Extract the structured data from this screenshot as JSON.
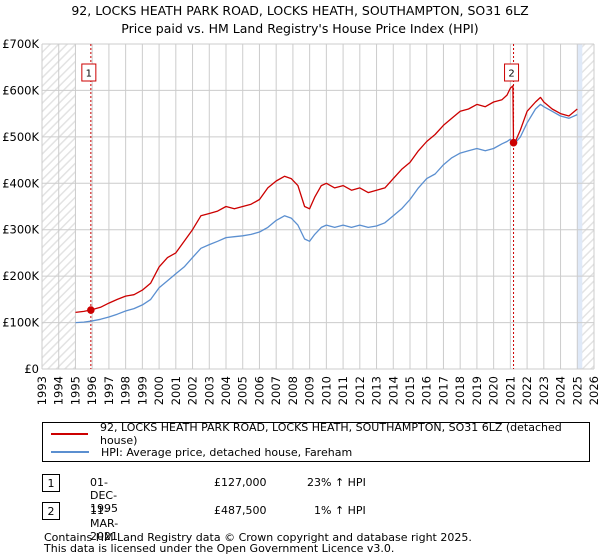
{
  "title": {
    "line1": "92, LOCKS HEATH PARK ROAD, LOCKS HEATH, SOUTHAMPTON, SO31 6LZ",
    "line2": "Price paid vs. HM Land Registry's House Price Index (HPI)"
  },
  "colors": {
    "property": "#cc0000",
    "hpi": "#5b8fd0",
    "grid": "#cccccc",
    "hatch": "#e6e6e6",
    "shade": "#dfe9f8"
  },
  "legend": {
    "property": "92, LOCKS HEATH PARK ROAD, LOCKS HEATH, SOUTHAMPTON, SO31 6LZ (detached house)",
    "hpi": "HPI: Average price, detached house, Fareham"
  },
  "transactions": [
    {
      "num": "1",
      "date": "01-DEC-1995",
      "price": "£127,000",
      "hpi": "23% ↑ HPI"
    },
    {
      "num": "2",
      "date": "11-MAR-2021",
      "price": "£487,500",
      "hpi": "  1% ↑ HPI"
    }
  ],
  "footer": {
    "line1": "Contains HM Land Registry data © Crown copyright and database right 2025.",
    "line2": "This data is licensed under the Open Government Licence v3.0."
  },
  "chart_data": {
    "type": "line",
    "title": "92, LOCKS HEATH PARK ROAD, LOCKS HEATH, SOUTHAMPTON, SO31 6LZ — Price paid vs. HM Land Registry's House Price Index (HPI)",
    "xlabel": "",
    "ylabel": "",
    "xlim": [
      1993,
      2026
    ],
    "ylim": [
      0,
      700000
    ],
    "x_ticks": [
      "1993",
      "1994",
      "1995",
      "1996",
      "1997",
      "1998",
      "1999",
      "2000",
      "2001",
      "2002",
      "2003",
      "2004",
      "2005",
      "2006",
      "2007",
      "2008",
      "2009",
      "2010",
      "2011",
      "2012",
      "2013",
      "2014",
      "2015",
      "2016",
      "2017",
      "2018",
      "2019",
      "2020",
      "2021",
      "2022",
      "2023",
      "2024",
      "2025",
      "2026"
    ],
    "y_ticks": [
      {
        "value": 0,
        "label": "£0"
      },
      {
        "value": 100000,
        "label": "£100K"
      },
      {
        "value": 200000,
        "label": "£200K"
      },
      {
        "value": 300000,
        "label": "£300K"
      },
      {
        "value": 400000,
        "label": "£400K"
      },
      {
        "value": 500000,
        "label": "£500K"
      },
      {
        "value": 600000,
        "label": "£600K"
      },
      {
        "value": 700000,
        "label": "£700K"
      }
    ],
    "grid": true,
    "hatched_ranges": [
      [
        1993,
        1995.0
      ],
      [
        2025.0,
        2026
      ]
    ],
    "shaded_range": [
      2025.0,
      2025.3
    ],
    "series": [
      {
        "name": "92, LOCKS HEATH PARK ROAD, LOCKS HEATH, SOUTHAMPTON, SO31 6LZ (detached house)",
        "color": "#cc0000",
        "x": [
          1995.0,
          1995.5,
          1995.92,
          1996.5,
          1997.0,
          1997.5,
          1998.0,
          1998.5,
          1999.0,
          1999.5,
          2000.0,
          2000.5,
          2001.0,
          2001.5,
          2002.0,
          2002.5,
          2003.0,
          2003.5,
          2004.0,
          2004.5,
          2005.0,
          2005.5,
          2006.0,
          2006.5,
          2007.0,
          2007.5,
          2007.9,
          2008.3,
          2008.7,
          2009.0,
          2009.3,
          2009.7,
          2010.0,
          2010.5,
          2011.0,
          2011.5,
          2012.0,
          2012.5,
          2013.0,
          2013.5,
          2014.0,
          2014.5,
          2015.0,
          2015.5,
          2016.0,
          2016.5,
          2017.0,
          2017.5,
          2018.0,
          2018.5,
          2019.0,
          2019.5,
          2020.0,
          2020.5,
          2020.8,
          2021.0,
          2021.15,
          2021.19,
          2021.3,
          2021.6,
          2022.0,
          2022.5,
          2022.8,
          2023.0,
          2023.5,
          2024.0,
          2024.5,
          2025.0
        ],
        "values": [
          122000,
          124000,
          127000,
          133000,
          142000,
          150000,
          157000,
          160000,
          170000,
          185000,
          220000,
          240000,
          250000,
          275000,
          300000,
          330000,
          335000,
          340000,
          350000,
          345000,
          350000,
          355000,
          365000,
          390000,
          405000,
          415000,
          410000,
          395000,
          350000,
          345000,
          370000,
          395000,
          400000,
          390000,
          395000,
          385000,
          390000,
          380000,
          385000,
          390000,
          410000,
          430000,
          445000,
          470000,
          490000,
          505000,
          525000,
          540000,
          555000,
          560000,
          570000,
          565000,
          575000,
          580000,
          590000,
          605000,
          610000,
          487500,
          490000,
          515000,
          555000,
          575000,
          585000,
          575000,
          560000,
          550000,
          545000,
          560000
        ]
      },
      {
        "name": "HPI: Average price, detached house, Fareham",
        "color": "#5b8fd0",
        "x": [
          1995.0,
          1995.5,
          1995.92,
          1996.5,
          1997.0,
          1997.5,
          1998.0,
          1998.5,
          1999.0,
          1999.5,
          2000.0,
          2000.5,
          2001.0,
          2001.5,
          2002.0,
          2002.5,
          2003.0,
          2003.5,
          2004.0,
          2004.5,
          2005.0,
          2005.5,
          2006.0,
          2006.5,
          2007.0,
          2007.5,
          2007.9,
          2008.3,
          2008.7,
          2009.0,
          2009.3,
          2009.7,
          2010.0,
          2010.5,
          2011.0,
          2011.5,
          2012.0,
          2012.5,
          2013.0,
          2013.5,
          2014.0,
          2014.5,
          2015.0,
          2015.5,
          2016.0,
          2016.5,
          2017.0,
          2017.5,
          2018.0,
          2018.5,
          2019.0,
          2019.5,
          2020.0,
          2020.5,
          2020.8,
          2021.0,
          2021.19,
          2021.6,
          2022.0,
          2022.5,
          2022.8,
          2023.0,
          2023.5,
          2024.0,
          2024.5,
          2025.0
        ],
        "values": [
          100000,
          101000,
          103000,
          107000,
          112000,
          118000,
          125000,
          130000,
          138000,
          150000,
          175000,
          190000,
          205000,
          220000,
          240000,
          260000,
          268000,
          275000,
          283000,
          285000,
          287000,
          290000,
          295000,
          305000,
          320000,
          330000,
          325000,
          310000,
          280000,
          275000,
          290000,
          305000,
          310000,
          305000,
          310000,
          305000,
          310000,
          305000,
          308000,
          315000,
          330000,
          345000,
          365000,
          390000,
          410000,
          420000,
          440000,
          455000,
          465000,
          470000,
          475000,
          470000,
          475000,
          485000,
          490000,
          495000,
          483000,
          500000,
          530000,
          560000,
          570000,
          565000,
          555000,
          545000,
          540000,
          548000
        ]
      }
    ],
    "annotations": [
      {
        "label": "1",
        "x": 1995.92,
        "y": 127000
      },
      {
        "label": "2",
        "x": 2021.19,
        "y": 487500
      }
    ]
  }
}
